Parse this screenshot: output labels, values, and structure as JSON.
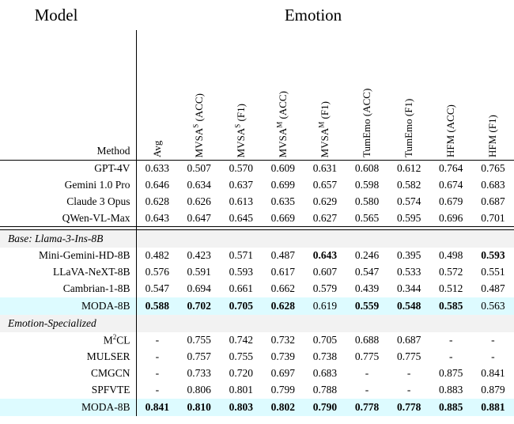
{
  "title": {
    "model": "Model",
    "emotion": "Emotion",
    "method": "Method"
  },
  "colors": {
    "highlight": "#ddfbff",
    "section_bg": "#f2f2f2",
    "rule": "#000000"
  },
  "columns": [
    {
      "name": "Avg",
      "sup": "",
      "metric": ""
    },
    {
      "name": "MVSA",
      "sup": "S",
      "metric": "(ACC)"
    },
    {
      "name": "MVSA",
      "sup": "S",
      "metric": "(F1)"
    },
    {
      "name": "MVSA",
      "sup": "M",
      "metric": "(ACC)"
    },
    {
      "name": "MVSA",
      "sup": "M",
      "metric": "(F1)"
    },
    {
      "name": "TumEmo",
      "sup": "",
      "metric": "(ACC)"
    },
    {
      "name": "TumEmo",
      "sup": "",
      "metric": "(F1)"
    },
    {
      "name": "HFM",
      "sup": "",
      "metric": "(ACC)"
    },
    {
      "name": "HFM",
      "sup": "",
      "metric": "(F1)"
    }
  ],
  "rows": [
    {
      "type": "data",
      "method": {
        "pre": "GPT-4V",
        "sup": "",
        "post": ""
      },
      "values": [
        "0.633",
        "0.507",
        "0.570",
        "0.609",
        "0.631",
        "0.608",
        "0.612",
        "0.764",
        "0.765"
      ],
      "bold": [
        0,
        0,
        0,
        0,
        0,
        0,
        0,
        0,
        0
      ],
      "highlight": false
    },
    {
      "type": "data",
      "method": {
        "pre": "Gemini 1.0 Pro",
        "sup": "",
        "post": ""
      },
      "values": [
        "0.646",
        "0.634",
        "0.637",
        "0.699",
        "0.657",
        "0.598",
        "0.582",
        "0.674",
        "0.683"
      ],
      "bold": [
        0,
        0,
        0,
        0,
        0,
        0,
        0,
        0,
        0
      ],
      "highlight": false
    },
    {
      "type": "data",
      "method": {
        "pre": "Claude 3 Opus",
        "sup": "",
        "post": ""
      },
      "values": [
        "0.628",
        "0.626",
        "0.613",
        "0.635",
        "0.629",
        "0.580",
        "0.574",
        "0.679",
        "0.687"
      ],
      "bold": [
        0,
        0,
        0,
        0,
        0,
        0,
        0,
        0,
        0
      ],
      "highlight": false
    },
    {
      "type": "data",
      "method": {
        "pre": "QWen-VL-Max",
        "sup": "",
        "post": ""
      },
      "values": [
        "0.643",
        "0.647",
        "0.645",
        "0.669",
        "0.627",
        "0.565",
        "0.595",
        "0.696",
        "0.701"
      ],
      "bold": [
        0,
        0,
        0,
        0,
        0,
        0,
        0,
        0,
        0
      ],
      "highlight": false
    },
    {
      "type": "rule"
    },
    {
      "type": "section",
      "label": "Base: Llama-3-Ins-8B"
    },
    {
      "type": "data",
      "method": {
        "pre": "Mini-Gemini-HD-8B",
        "sup": "",
        "post": ""
      },
      "values": [
        "0.482",
        "0.423",
        "0.571",
        "0.487",
        "0.643",
        "0.246",
        "0.395",
        "0.498",
        "0.593"
      ],
      "bold": [
        0,
        0,
        0,
        0,
        1,
        0,
        0,
        0,
        1
      ],
      "highlight": false
    },
    {
      "type": "data",
      "method": {
        "pre": "LLaVA-NeXT-8B",
        "sup": "",
        "post": ""
      },
      "values": [
        "0.576",
        "0.591",
        "0.593",
        "0.617",
        "0.607",
        "0.547",
        "0.533",
        "0.572",
        "0.551"
      ],
      "bold": [
        0,
        0,
        0,
        0,
        0,
        0,
        0,
        0,
        0
      ],
      "highlight": false
    },
    {
      "type": "data",
      "method": {
        "pre": "Cambrian-1-8B",
        "sup": "",
        "post": ""
      },
      "values": [
        "0.547",
        "0.694",
        "0.661",
        "0.662",
        "0.579",
        "0.439",
        "0.344",
        "0.512",
        "0.487"
      ],
      "bold": [
        0,
        0,
        0,
        0,
        0,
        0,
        0,
        0,
        0
      ],
      "highlight": false
    },
    {
      "type": "data",
      "method": {
        "pre": "MODA-8B",
        "sup": "",
        "post": ""
      },
      "values": [
        "0.588",
        "0.702",
        "0.705",
        "0.628",
        "0.619",
        "0.559",
        "0.548",
        "0.585",
        "0.563"
      ],
      "bold": [
        1,
        1,
        1,
        1,
        0,
        1,
        1,
        1,
        0
      ],
      "highlight": true
    },
    {
      "type": "section",
      "label": "Emotion-Specialized"
    },
    {
      "type": "data",
      "method": {
        "pre": "M",
        "sup": "2",
        "post": "CL"
      },
      "values": [
        "-",
        "0.755",
        "0.742",
        "0.732",
        "0.705",
        "0.688",
        "0.687",
        "-",
        "-"
      ],
      "bold": [
        0,
        0,
        0,
        0,
        0,
        0,
        0,
        0,
        0
      ],
      "highlight": false
    },
    {
      "type": "data",
      "method": {
        "pre": "MULSER",
        "sup": "",
        "post": ""
      },
      "values": [
        "-",
        "0.757",
        "0.755",
        "0.739",
        "0.738",
        "0.775",
        "0.775",
        "-",
        "-"
      ],
      "bold": [
        0,
        0,
        0,
        0,
        0,
        0,
        0,
        0,
        0
      ],
      "highlight": false
    },
    {
      "type": "data",
      "method": {
        "pre": "CMGCN",
        "sup": "",
        "post": ""
      },
      "values": [
        "-",
        "0.733",
        "0.720",
        "0.697",
        "0.683",
        "-",
        "-",
        "0.875",
        "0.841"
      ],
      "bold": [
        0,
        0,
        0,
        0,
        0,
        0,
        0,
        0,
        0
      ],
      "highlight": false
    },
    {
      "type": "data",
      "method": {
        "pre": "SPFVTE",
        "sup": "",
        "post": ""
      },
      "values": [
        "-",
        "0.806",
        "0.801",
        "0.799",
        "0.788",
        "-",
        "-",
        "0.883",
        "0.879"
      ],
      "bold": [
        0,
        0,
        0,
        0,
        0,
        0,
        0,
        0,
        0
      ],
      "highlight": false
    },
    {
      "type": "data",
      "method": {
        "pre": "MODA-8B",
        "sup": "",
        "post": ""
      },
      "values": [
        "0.841",
        "0.810",
        "0.803",
        "0.802",
        "0.790",
        "0.778",
        "0.778",
        "0.885",
        "0.881"
      ],
      "bold": [
        1,
        1,
        1,
        1,
        1,
        1,
        1,
        1,
        1
      ],
      "highlight": true
    }
  ]
}
